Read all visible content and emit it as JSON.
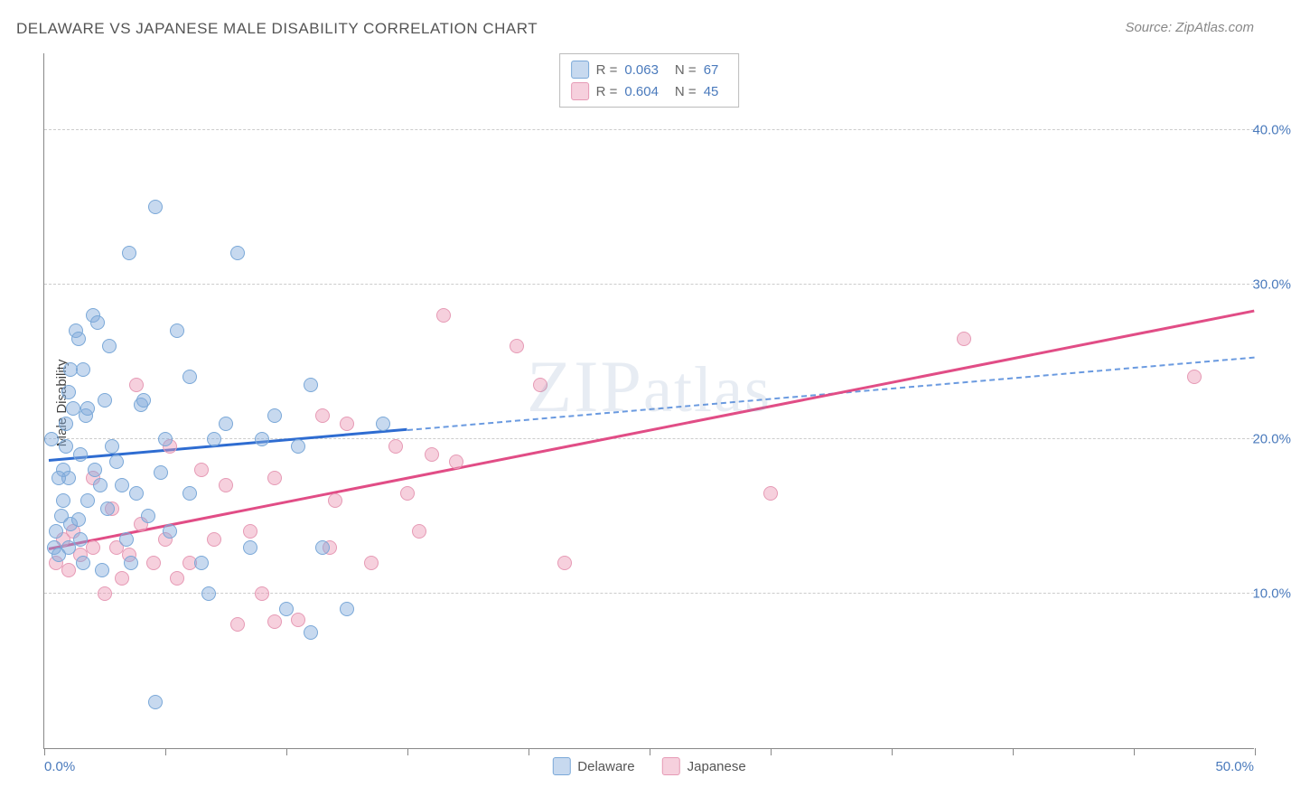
{
  "title": "DELAWARE VS JAPANESE MALE DISABILITY CORRELATION CHART",
  "source": "Source: ZipAtlas.com",
  "watermark": "ZIPatlas",
  "y_axis_title": "Male Disability",
  "chart": {
    "type": "scatter",
    "xlim": [
      0,
      50
    ],
    "ylim": [
      0,
      45
    ],
    "x_ticks": [
      0,
      5,
      10,
      15,
      20,
      25,
      30,
      35,
      40,
      45,
      50
    ],
    "y_gridlines": [
      10,
      20,
      30,
      40
    ],
    "y_labels": [
      "10.0%",
      "20.0%",
      "30.0%",
      "40.0%"
    ],
    "x_label_min": "0.0%",
    "x_label_max": "50.0%",
    "background_color": "#ffffff",
    "grid_color": "#cccccc",
    "axis_label_color": "#4a7abc",
    "marker_radius": 8,
    "line_width": 3
  },
  "series": {
    "delaware": {
      "label": "Delaware",
      "fill": "rgba(130,170,220,0.45)",
      "stroke": "#7aa8d8",
      "line_color": "#2e6cd1",
      "dash_color": "#6a9ae0",
      "R": "0.063",
      "N": "67",
      "regression": {
        "x1": 0.2,
        "y1": 18.5,
        "x2": 15.0,
        "y2": 20.5,
        "extrap_x2": 50.0,
        "extrap_y2": 25.2
      },
      "points": [
        [
          0.4,
          13.0
        ],
        [
          0.5,
          14.0
        ],
        [
          0.6,
          12.5
        ],
        [
          0.7,
          15.0
        ],
        [
          0.8,
          16.0
        ],
        [
          0.8,
          18.0
        ],
        [
          0.9,
          21.0
        ],
        [
          1.0,
          23.0
        ],
        [
          1.0,
          17.5
        ],
        [
          1.1,
          14.5
        ],
        [
          1.2,
          22.0
        ],
        [
          1.3,
          27.0
        ],
        [
          1.4,
          26.5
        ],
        [
          1.5,
          19.0
        ],
        [
          1.5,
          13.5
        ],
        [
          1.6,
          24.5
        ],
        [
          1.7,
          21.5
        ],
        [
          1.8,
          22.0
        ],
        [
          2.0,
          28.0
        ],
        [
          2.2,
          27.5
        ],
        [
          2.3,
          17.0
        ],
        [
          2.4,
          11.5
        ],
        [
          2.5,
          22.5
        ],
        [
          2.7,
          26.0
        ],
        [
          2.8,
          19.5
        ],
        [
          3.0,
          18.5
        ],
        [
          3.2,
          17.0
        ],
        [
          3.5,
          32.0
        ],
        [
          3.6,
          12.0
        ],
        [
          3.8,
          16.5
        ],
        [
          4.0,
          22.2
        ],
        [
          4.1,
          22.5
        ],
        [
          4.3,
          15.0
        ],
        [
          4.6,
          35.0
        ],
        [
          4.6,
          3.0
        ],
        [
          5.0,
          20.0
        ],
        [
          5.2,
          14.0
        ],
        [
          5.5,
          27.0
        ],
        [
          6.0,
          24.0
        ],
        [
          6.0,
          16.5
        ],
        [
          6.5,
          12.0
        ],
        [
          6.8,
          10.0
        ],
        [
          7.0,
          20.0
        ],
        [
          7.5,
          21.0
        ],
        [
          8.0,
          32.0
        ],
        [
          8.5,
          13.0
        ],
        [
          9.0,
          20.0
        ],
        [
          9.5,
          21.5
        ],
        [
          10.0,
          9.0
        ],
        [
          10.5,
          19.5
        ],
        [
          11.0,
          23.5
        ],
        [
          11.0,
          7.5
        ],
        [
          11.5,
          13.0
        ],
        [
          12.5,
          9.0
        ],
        [
          14.0,
          21.0
        ],
        [
          1.0,
          13.0
        ],
        [
          1.4,
          14.8
        ],
        [
          0.6,
          17.5
        ],
        [
          0.9,
          19.5
        ],
        [
          2.1,
          18.0
        ],
        [
          2.6,
          15.5
        ],
        [
          1.8,
          16.0
        ],
        [
          3.4,
          13.5
        ],
        [
          0.3,
          20.0
        ],
        [
          1.1,
          24.5
        ],
        [
          1.6,
          12.0
        ],
        [
          4.8,
          17.8
        ]
      ]
    },
    "japanese": {
      "label": "Japanese",
      "fill": "rgba(235,150,180,0.45)",
      "stroke": "#e69ab5",
      "line_color": "#e14d86",
      "R": "0.604",
      "N": "45",
      "regression": {
        "x1": 0.2,
        "y1": 12.8,
        "x2": 50.0,
        "y2": 28.2
      },
      "points": [
        [
          0.5,
          12.0
        ],
        [
          0.8,
          13.5
        ],
        [
          1.0,
          11.5
        ],
        [
          1.2,
          14.0
        ],
        [
          1.5,
          12.5
        ],
        [
          2.0,
          13.0
        ],
        [
          2.0,
          17.5
        ],
        [
          2.5,
          10.0
        ],
        [
          2.8,
          15.5
        ],
        [
          3.0,
          13.0
        ],
        [
          3.2,
          11.0
        ],
        [
          3.5,
          12.5
        ],
        [
          3.8,
          23.5
        ],
        [
          4.0,
          14.5
        ],
        [
          4.5,
          12.0
        ],
        [
          5.0,
          13.5
        ],
        [
          5.2,
          19.5
        ],
        [
          5.5,
          11.0
        ],
        [
          6.0,
          12.0
        ],
        [
          6.5,
          18.0
        ],
        [
          7.0,
          13.5
        ],
        [
          7.5,
          17.0
        ],
        [
          8.0,
          8.0
        ],
        [
          8.5,
          14.0
        ],
        [
          9.0,
          10.0
        ],
        [
          9.5,
          8.2
        ],
        [
          9.5,
          17.5
        ],
        [
          10.5,
          8.3
        ],
        [
          11.5,
          21.5
        ],
        [
          12.0,
          16.0
        ],
        [
          12.5,
          21.0
        ],
        [
          13.5,
          12.0
        ],
        [
          14.5,
          19.5
        ],
        [
          15.0,
          16.5
        ],
        [
          15.5,
          14.0
        ],
        [
          16.0,
          19.0
        ],
        [
          16.5,
          28.0
        ],
        [
          17.0,
          18.5
        ],
        [
          19.5,
          26.0
        ],
        [
          20.5,
          23.5
        ],
        [
          21.5,
          12.0
        ],
        [
          30.0,
          16.5
        ],
        [
          38.0,
          26.5
        ],
        [
          47.5,
          24.0
        ],
        [
          11.8,
          13.0
        ]
      ]
    }
  },
  "legend_top_labels": {
    "R": "R =",
    "N": "N ="
  }
}
